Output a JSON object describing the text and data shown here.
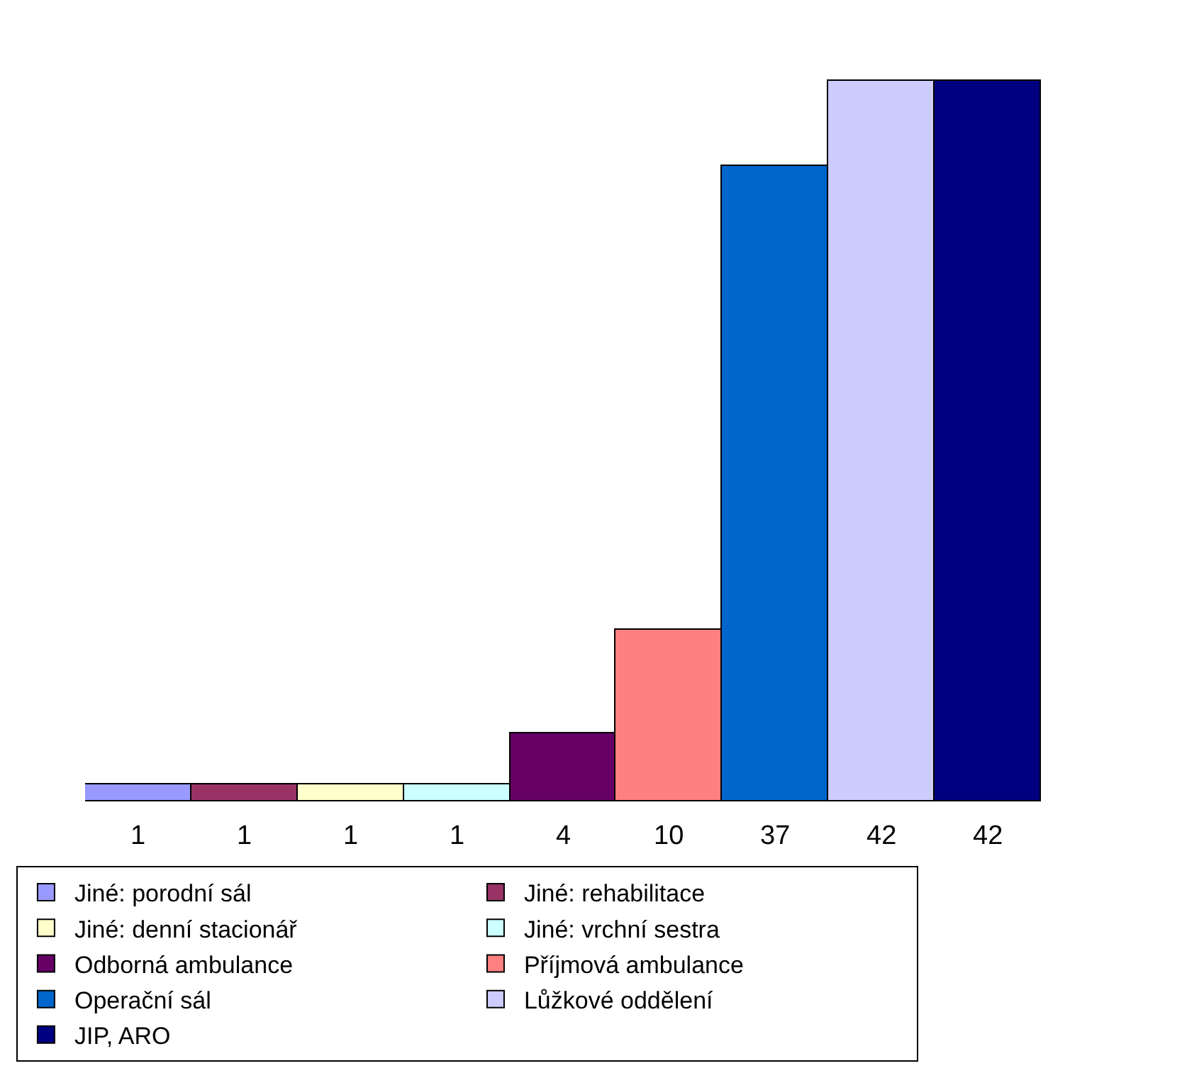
{
  "chart_data": {
    "type": "bar",
    "categories": [
      null,
      null,
      null,
      null,
      null,
      null,
      null,
      null,
      null
    ],
    "stacked": true,
    "data_labels": true,
    "legend": "bottom",
    "grid": false,
    "series": [
      {
        "name": "Jiné: porodní sál",
        "color": "#9999ff",
        "values": [
          1,
          null,
          null,
          null,
          null,
          null,
          null,
          null,
          null
        ]
      },
      {
        "name": "Jiné: rehabilitace",
        "color": "#993366",
        "values": [
          null,
          1,
          null,
          null,
          null,
          null,
          null,
          null,
          null
        ]
      },
      {
        "name": "Jiné: denní stacionář",
        "color": "#ffffcc",
        "values": [
          null,
          null,
          1,
          null,
          null,
          null,
          null,
          null,
          null
        ]
      },
      {
        "name": "Jiné: vrchní sestra",
        "color": "#ccffff",
        "values": [
          null,
          null,
          null,
          1,
          null,
          null,
          null,
          null,
          null
        ]
      },
      {
        "name": "Odborná ambulance",
        "color": "#660066",
        "values": [
          null,
          null,
          null,
          null,
          4,
          null,
          null,
          null,
          null
        ]
      },
      {
        "name": "Příjmová ambulance",
        "color": "#ff8080",
        "values": [
          null,
          null,
          null,
          null,
          null,
          10,
          null,
          null,
          null
        ]
      },
      {
        "name": "Operační sál",
        "color": "#0066cc",
        "values": [
          null,
          null,
          null,
          null,
          null,
          null,
          37,
          null,
          null
        ]
      },
      {
        "name": "Lůžkové oddělení",
        "color": "#ccccff",
        "values": [
          null,
          null,
          null,
          null,
          null,
          null,
          null,
          42,
          null
        ]
      },
      {
        "name": "JIP, ARO",
        "color": "#000080",
        "values": [
          null,
          null,
          null,
          null,
          null,
          null,
          null,
          null,
          42
        ]
      }
    ]
  }
}
